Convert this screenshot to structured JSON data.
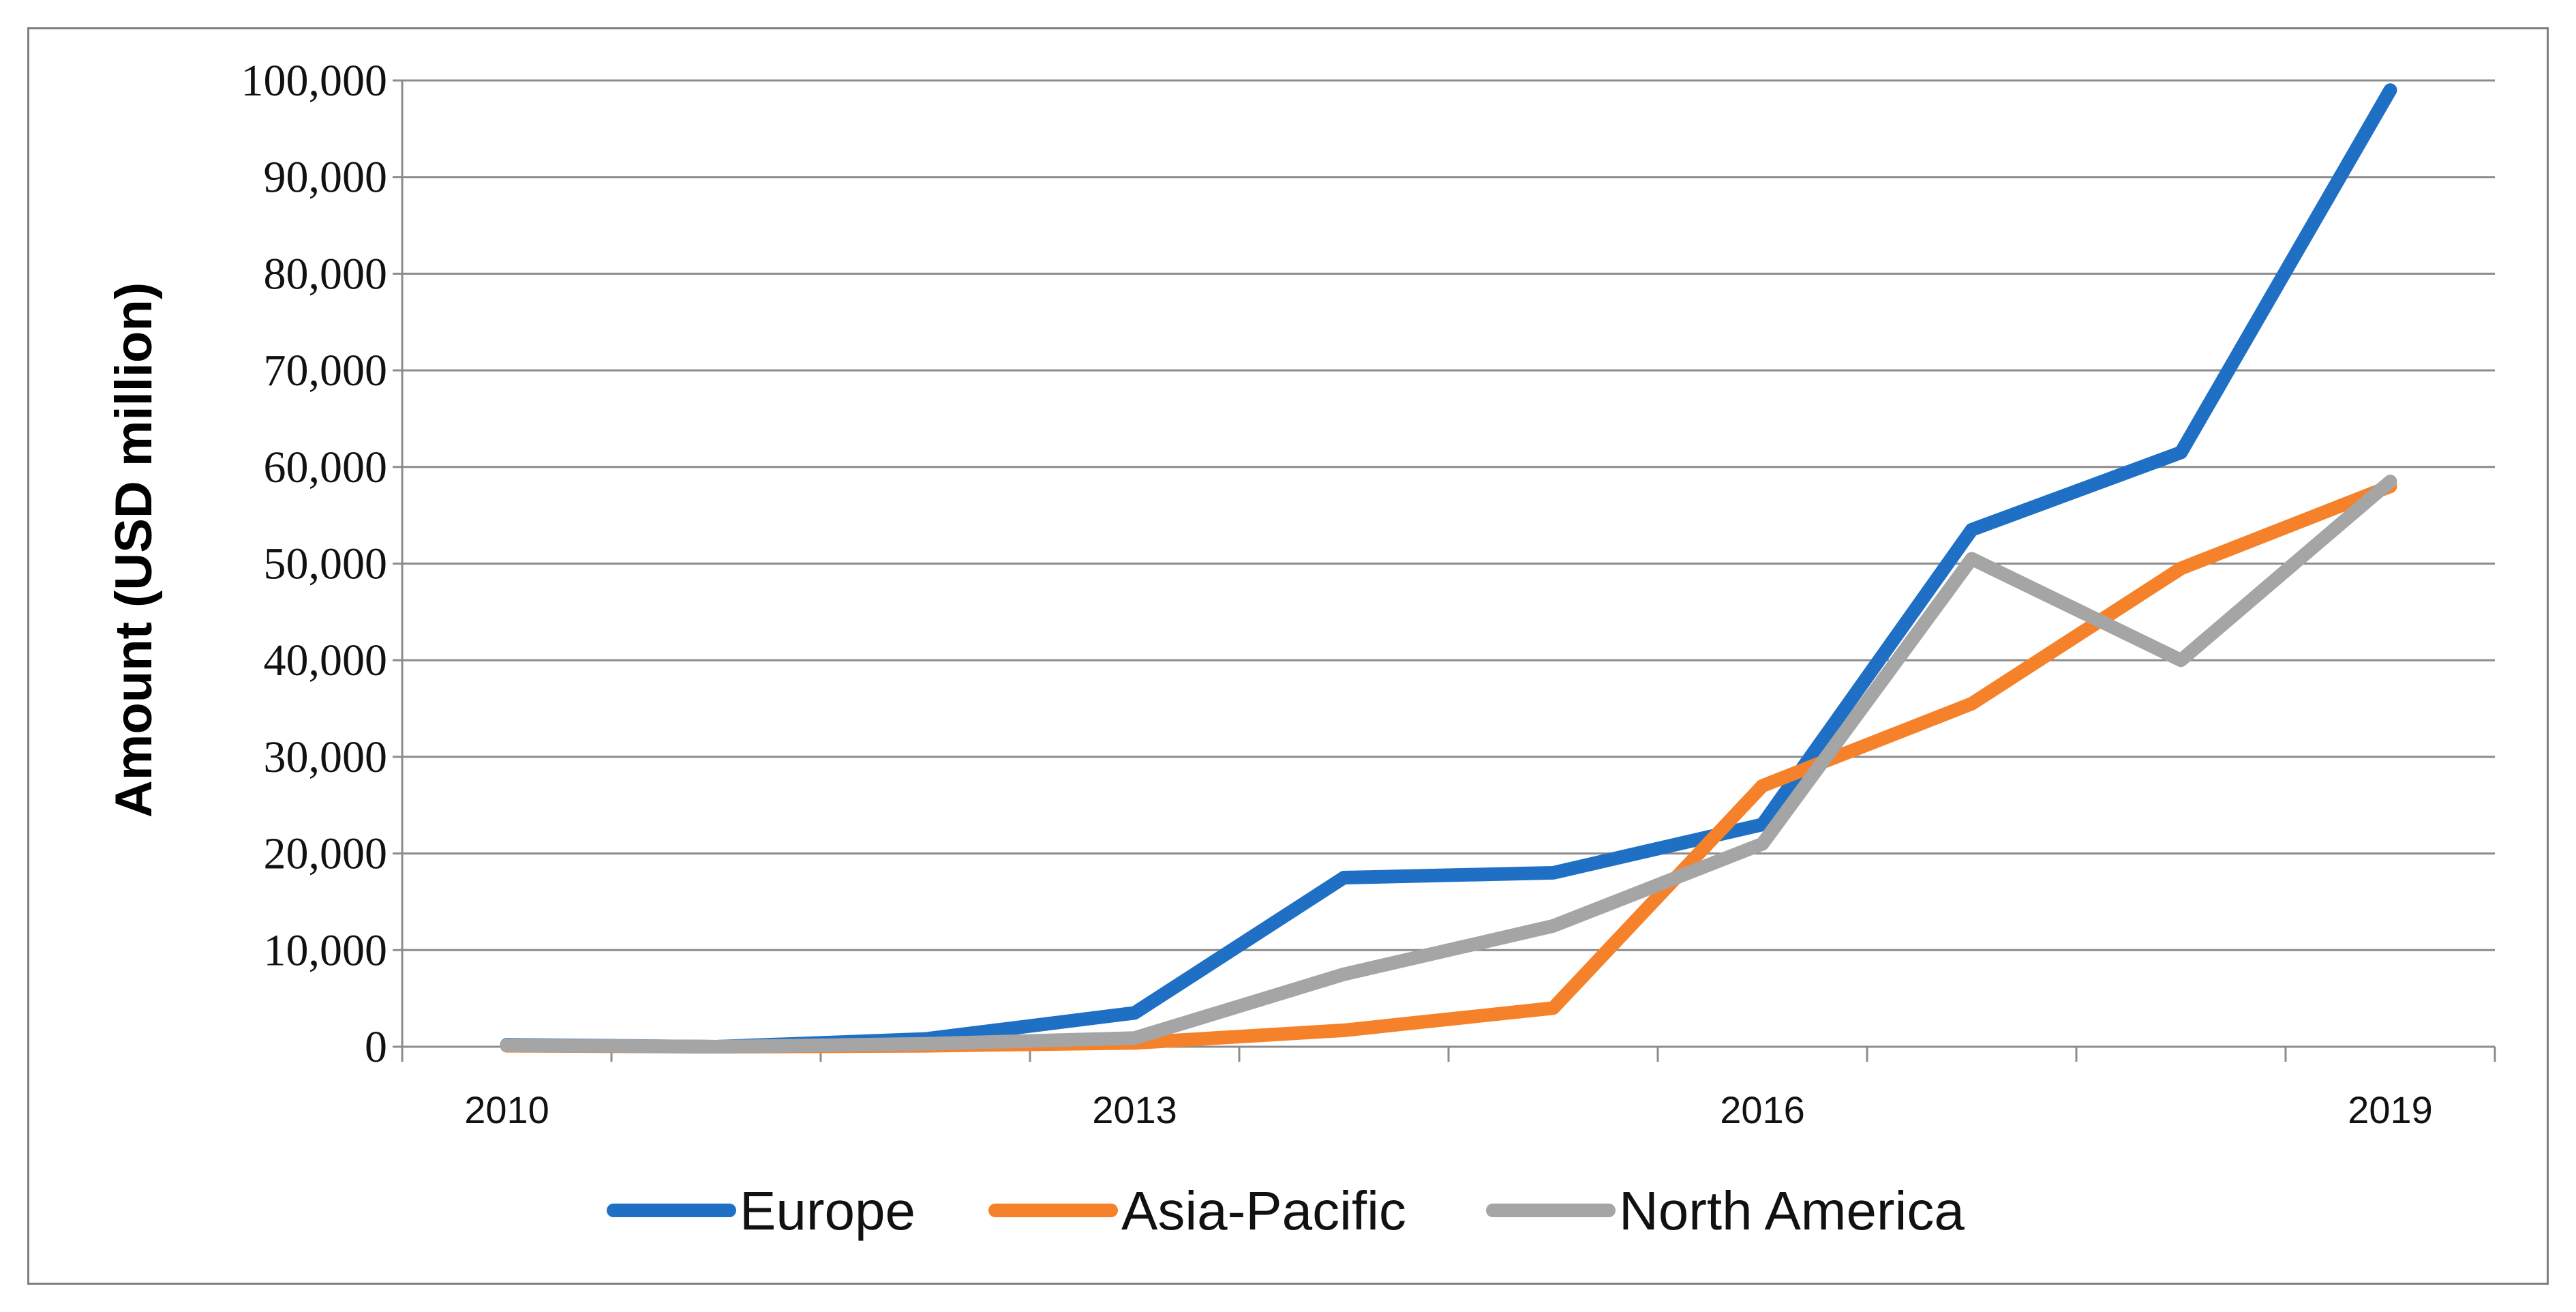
{
  "chart_data": {
    "type": "line",
    "ylabel": "Amount  (USD million)",
    "xlabel": "",
    "x": [
      2010,
      2011,
      2012,
      2013,
      2014,
      2015,
      2016,
      2017,
      2018,
      2019
    ],
    "x_tick_labels": [
      "2010",
      "2013",
      "2016",
      "2019"
    ],
    "y_tick_labels": [
      "0",
      "10,000",
      "20,000",
      "30,000",
      "40,000",
      "50,000",
      "60,000",
      "70,000",
      "80,000",
      "90,000",
      "100,000"
    ],
    "ylim": [
      0,
      100000
    ],
    "grid": true,
    "legend_position": "bottom",
    "series": [
      {
        "name": "Europe",
        "color": "#1f6fc5",
        "values": [
          200,
          0,
          800,
          3500,
          17500,
          18000,
          23000,
          53500,
          61500,
          99000
        ]
      },
      {
        "name": "Asia-Pacific",
        "color": "#f5822a",
        "values": [
          100,
          0,
          100,
          400,
          1700,
          4000,
          27000,
          35500,
          49500,
          58000
        ]
      },
      {
        "name": "North America",
        "color": "#a5a5a5",
        "values": [
          150,
          0,
          300,
          900,
          7500,
          12500,
          21000,
          50500,
          40000,
          58500
        ]
      }
    ]
  }
}
